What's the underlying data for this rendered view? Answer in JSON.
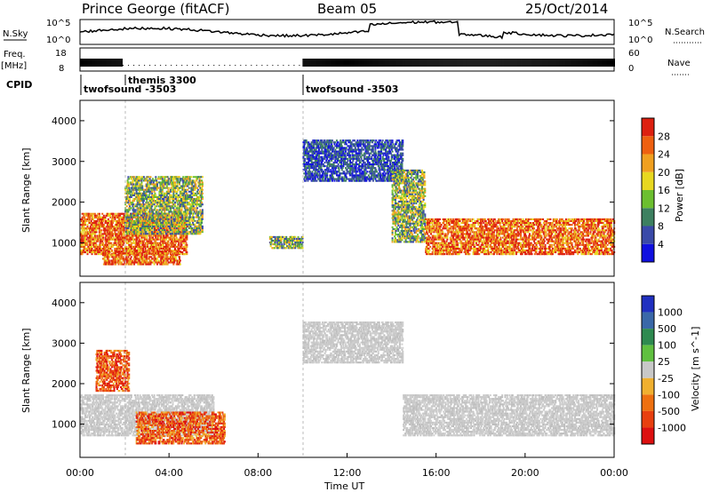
{
  "header": {
    "station": "Prince George (fitACF)",
    "beam": "Beam 05",
    "date": "25/Oct/2014"
  },
  "top_panels": {
    "nsky_label": "N.Sky",
    "nsearch_label": "N.Search",
    "nsky_tick_hi": "10^5",
    "nsky_tick_lo": "10^0",
    "freq_label_1": "Freq.",
    "freq_label_2": "[MHz]",
    "freq_tick_hi": "18",
    "freq_tick_lo": "8",
    "nave_label": "Nave",
    "nave_tick_hi": "60",
    "nave_tick_lo": "0",
    "cpid_label": "CPID",
    "cpid_segments": [
      {
        "label": "twofsound -3503",
        "start_hour": 0,
        "end_hour": 1.9
      },
      {
        "label": "themis 3300",
        "start_hour": 1.9,
        "end_hour": 10.0
      },
      {
        "label": "twofsound -3503",
        "start_hour": 10.0,
        "end_hour": 24
      }
    ]
  },
  "chart_data": [
    {
      "type": "heatmap",
      "title": "",
      "xlabel": "",
      "ylabel": "Slant Range [km]",
      "xlim": [
        0,
        24
      ],
      "ylim": [
        180,
        4500
      ],
      "yticks": [
        1000,
        2000,
        3000,
        4000
      ],
      "colorbar": {
        "label": "Power [dB]",
        "ticks": [
          "4",
          "8",
          "12",
          "16",
          "20",
          "24",
          "28"
        ],
        "colors": [
          "#1010e0",
          "#3a4aa8",
          "#3d8060",
          "#6cbf30",
          "#e8d820",
          "#f0a020",
          "#ee6010",
          "#dd2010"
        ]
      },
      "regions": [
        {
          "t": [
            0.0,
            4.8
          ],
          "r": [
            700,
            1700
          ],
          "level": "high",
          "desc": "band"
        },
        {
          "t": [
            1.0,
            4.5
          ],
          "r": [
            450,
            800
          ],
          "level": "high"
        },
        {
          "t": [
            2.0,
            5.5
          ],
          "r": [
            1200,
            2600
          ],
          "level": "mid"
        },
        {
          "t": [
            8.5,
            10.0
          ],
          "r": [
            850,
            1150
          ],
          "level": "mid"
        },
        {
          "t": [
            10.0,
            14.5
          ],
          "r": [
            2500,
            3500
          ],
          "level": "low"
        },
        {
          "t": [
            14.0,
            15.5
          ],
          "r": [
            1000,
            2800
          ],
          "level": "mid"
        },
        {
          "t": [
            15.5,
            24.0
          ],
          "r": [
            700,
            1600
          ],
          "level": "high"
        }
      ]
    },
    {
      "type": "heatmap",
      "title": "",
      "xlabel": "Time UT",
      "ylabel": "Slant Range [km]",
      "xlim": [
        0,
        24
      ],
      "ylim": [
        180,
        4500
      ],
      "xticks": [
        "00:00",
        "04:00",
        "08:00",
        "12:00",
        "16:00",
        "20:00",
        "00:00"
      ],
      "yticks": [
        1000,
        2000,
        3000,
        4000
      ],
      "colorbar": {
        "label": "Velocity [m s^-1]",
        "ticks": [
          "1000",
          "500",
          "100",
          "25",
          "-25",
          "-100",
          "-500",
          "-1000"
        ],
        "colors": [
          "#2030c0",
          "#3a68a8",
          "#2e8a50",
          "#60c040",
          "#c8c8c8",
          "#f0b030",
          "#ee7010",
          "#e84010",
          "#dd1010"
        ]
      },
      "regions": [
        {
          "t": [
            0.0,
            6.0
          ],
          "r": [
            700,
            1700
          ],
          "level": "ground"
        },
        {
          "t": [
            0.7,
            2.2
          ],
          "r": [
            1800,
            2800
          ],
          "level": "neg"
        },
        {
          "t": [
            2.5,
            6.5
          ],
          "r": [
            500,
            1300
          ],
          "level": "neg"
        },
        {
          "t": [
            10.0,
            14.5
          ],
          "r": [
            2500,
            3500
          ],
          "level": "ground"
        },
        {
          "t": [
            14.5,
            24.0
          ],
          "r": [
            700,
            1700
          ],
          "level": "ground"
        }
      ]
    }
  ]
}
